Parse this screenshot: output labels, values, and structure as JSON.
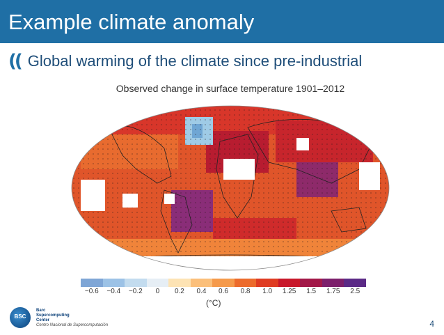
{
  "slide": {
    "title": "Example climate anomaly",
    "bullet": "Global warming of the climate since pre-industrial",
    "page_number": "4"
  },
  "figure": {
    "title": "Observed change in surface temperature 1901–2012",
    "unit_label": "(°C)",
    "colorbar": {
      "tick_labels": [
        "−0.6",
        "−0.4",
        "−0.2",
        "0",
        "0.2",
        "0.4",
        "0.6",
        "0.8",
        "1.0",
        "1.25",
        "1.5",
        "1.75",
        "2.5"
      ],
      "colors": [
        "#7fa6d6",
        "#9cc2e6",
        "#c3dcef",
        "#e6eef5",
        "#fde3b4",
        "#fbbf7a",
        "#f59a4b",
        "#ec6b2c",
        "#df3c22",
        "#c8182a",
        "#a21848",
        "#7c1f6b",
        "#5b2a86"
      ]
    }
  },
  "logo": {
    "mark_text": "BSC",
    "line1": "Barc",
    "line2": "Supercomputing",
    "line3": "Center",
    "line4": "Centro Nacional de Supercomputación"
  }
}
